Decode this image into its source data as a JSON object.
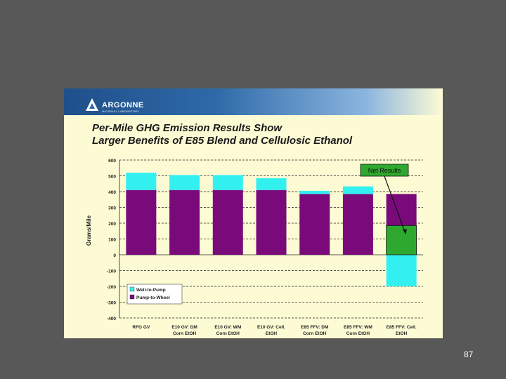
{
  "slide": {
    "logo_name": "ARGONNE",
    "logo_sub": "NATIONAL LABORATORY",
    "title_line_1": "Per-Mile GHG Emission Results Show",
    "title_line_2": "Larger Benefits of E85 Blend and Cellulosic Ethanol",
    "page_number": "87"
  },
  "colors": {
    "well_to_pump": "#33f0f0",
    "pump_to_wheel": "#7a0a7a",
    "net_results": "#2ea82e",
    "background": "#fdfbd4",
    "slide_border": "#585858"
  },
  "chart_data": {
    "type": "bar",
    "stacked": true,
    "ylabel": "Grams/Mile",
    "ylim": [
      -400,
      600
    ],
    "yticks": [
      600,
      500,
      400,
      300,
      200,
      100,
      0,
      -100,
      -200,
      -300,
      -400
    ],
    "grid": "dashed horizontal",
    "legend_position": "bottom-left",
    "categories": [
      [
        "RFG GV"
      ],
      [
        "E10 GV: DM",
        "Corn EtOH"
      ],
      [
        "E10 GV: WM",
        "Corn EtOH"
      ],
      [
        "E10 GV: Cell.",
        "EtOH"
      ],
      [
        "E85 FFV: DM",
        "Corn EtOH"
      ],
      [
        "E85 FFV: WM",
        "Corn EtOH"
      ],
      [
        "E85 FFV: Cell.",
        "EtOH"
      ]
    ],
    "series": [
      {
        "name": "Well-to-Pump",
        "values": [
          110,
          95,
          95,
          75,
          20,
          48,
          -200
        ]
      },
      {
        "name": "Pump-to-Wheel",
        "values": [
          410,
          410,
          410,
          410,
          385,
          385,
          385
        ]
      }
    ],
    "net": {
      "category_index": 6,
      "value": 185
    },
    "annotations": [
      {
        "text": "Net Results",
        "target": "net"
      }
    ]
  }
}
